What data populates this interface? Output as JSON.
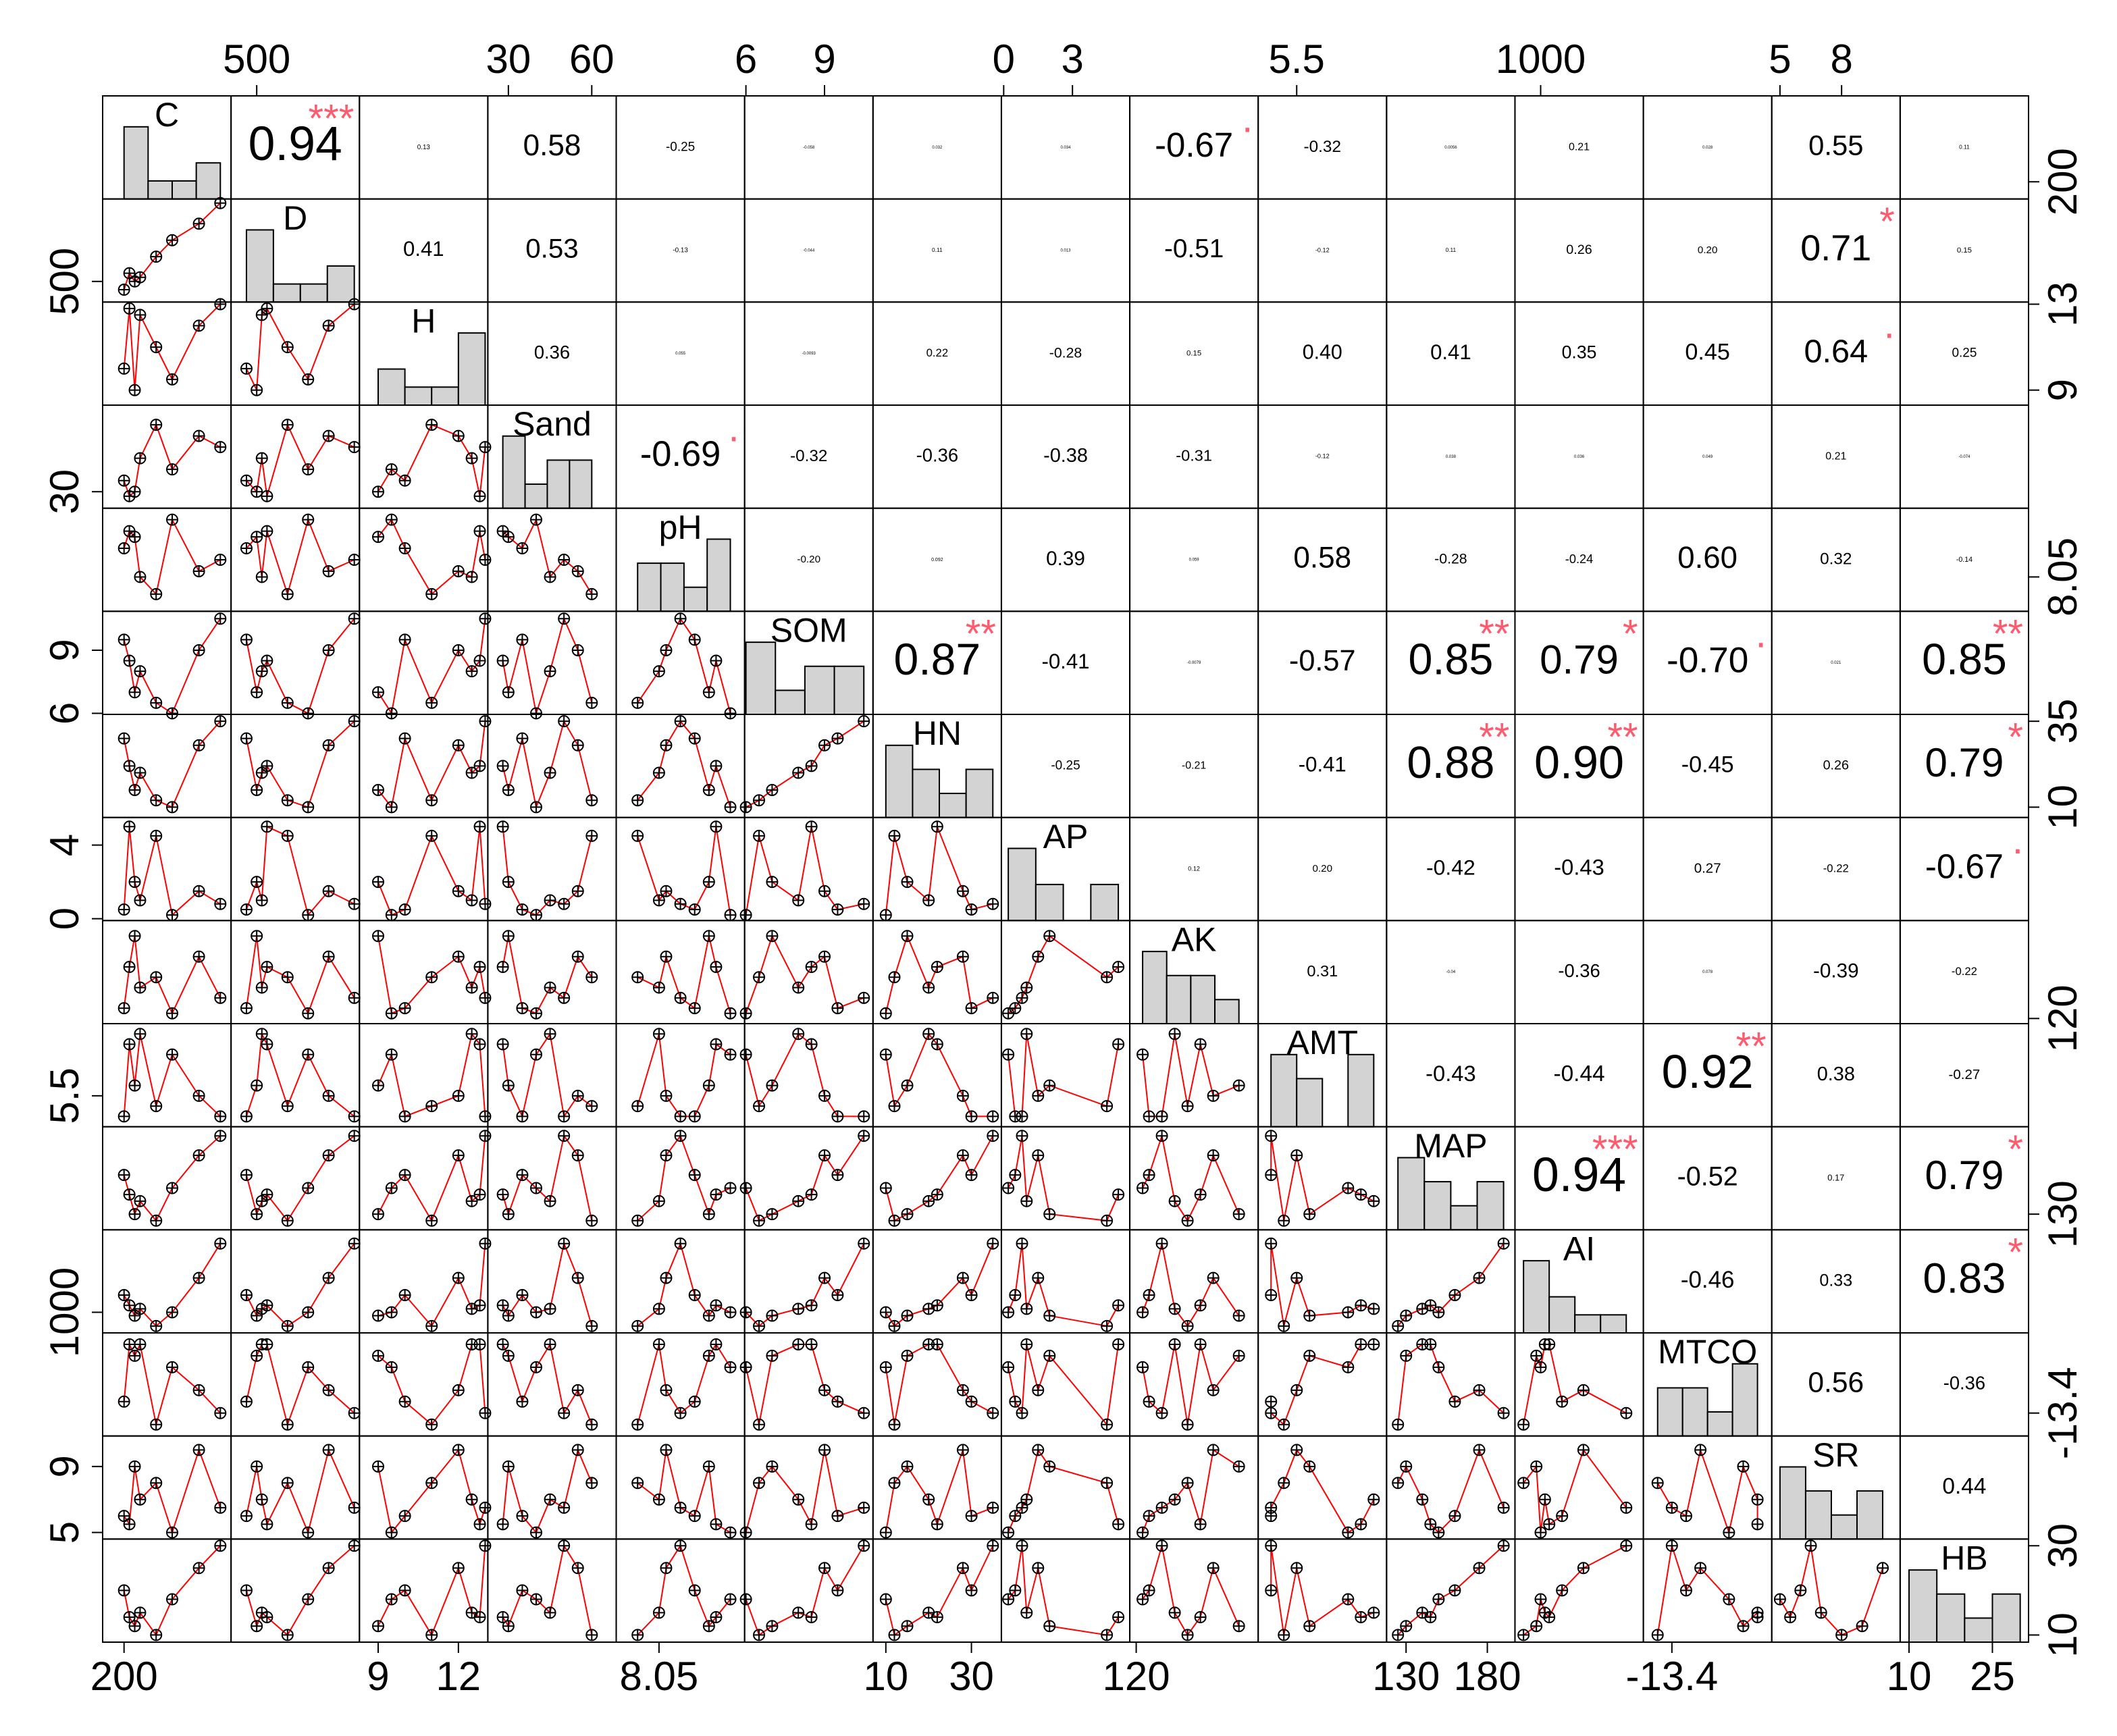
{
  "chart_data": {
    "type": "correlation-matrix",
    "smooth_color": "#ff0000",
    "star_color": "#ff5a6e",
    "hist_color": "#d3d3d3",
    "variables": [
      {
        "name": "C",
        "values": [
          200,
          210,
          215,
          230,
          245,
          270,
          290,
          205
        ],
        "lim": [
          180,
          300
        ],
        "xticks": [
          200
        ],
        "yticks": [
          200
        ]
      },
      {
        "name": "D",
        "values": [
          480,
          500,
          510,
          560,
          600,
          640,
          690,
          520
        ],
        "lim": [
          450,
          700
        ],
        "xticks": [
          500
        ],
        "yticks": [
          500
        ]
      },
      {
        "name": "H",
        "values": [
          10,
          9,
          12.5,
          11,
          9.5,
          12,
          13,
          12.8
        ],
        "lim": [
          8.3,
          13.1
        ],
        "xticks": [
          9,
          12
        ],
        "yticks": [
          9,
          13
        ]
      },
      {
        "name": "Sand",
        "values": [
          35,
          30,
          45,
          60,
          40,
          55,
          50,
          28
        ],
        "lim": [
          22.6,
          68.8
        ],
        "xticks": [
          30,
          60
        ],
        "yticks": [
          30
        ]
      },
      {
        "name": "pH",
        "values": [
          8.1,
          8.12,
          8.05,
          8.02,
          8.15,
          8.06,
          8.08,
          8.13
        ],
        "lim": [
          7.99,
          8.17
        ],
        "xticks": [
          8.05
        ],
        "yticks": [
          8.05
        ]
      },
      {
        "name": "SOM",
        "values": [
          9.5,
          7,
          8,
          6.5,
          6,
          9,
          10.5,
          8.5
        ],
        "lim": [
          5.95,
          10.85
        ],
        "xticks": [
          6,
          9
        ],
        "yticks": [
          6,
          9
        ]
      },
      {
        "name": "HN",
        "values": [
          30,
          15,
          20,
          12,
          10,
          28,
          35,
          22
        ],
        "lim": [
          7,
          37
        ],
        "xticks": [
          10,
          30
        ],
        "yticks": [
          10,
          35
        ]
      },
      {
        "name": "AP",
        "values": [
          0.5,
          2,
          1,
          4.5,
          0.2,
          1.5,
          0.8,
          5
        ],
        "lim": [
          -0.1,
          5.5
        ],
        "xticks": [
          0,
          3
        ],
        "yticks": [
          0,
          4
        ]
      },
      {
        "name": "AK",
        "values": [
          130,
          200,
          150,
          160,
          125,
          180,
          140,
          170
        ],
        "lim": [
          115,
          215
        ],
        "xticks": [
          120
        ],
        "yticks": [
          120
        ]
      },
      {
        "name": "AMT",
        "values": [
          5.3,
          5.6,
          6.1,
          5.4,
          5.9,
          5.5,
          5.3,
          6.0
        ],
        "lim": [
          5.2,
          6.2
        ],
        "xticks": [
          5.5
        ],
        "yticks": [
          5.5
        ]
      },
      {
        "name": "MAP",
        "values": [
          160,
          130,
          140,
          125,
          150,
          175,
          190,
          145
        ],
        "lim": [
          118,
          197
        ],
        "xticks": [
          130,
          180
        ],
        "yticks": [
          130
        ]
      },
      {
        "name": "AI",
        "values": [
          1050,
          990,
          1010,
          960,
          1000,
          1100,
          1200,
          1020
        ],
        "lim": [
          940,
          1240
        ],
        "xticks": [
          1000
        ],
        "yticks": [
          1000
        ]
      },
      {
        "name": "MTCO",
        "values": [
          -13.3,
          -12.9,
          -12.8,
          -13.5,
          -13.0,
          -13.2,
          -13.4,
          -12.8
        ],
        "lim": [
          -13.6,
          -12.7
        ],
        "xticks": [
          -13.4
        ],
        "yticks": [
          -13.4
        ]
      },
      {
        "name": "SR",
        "values": [
          6,
          9,
          7,
          8,
          5,
          10,
          6.5,
          5.5
        ],
        "lim": [
          4.6,
          10.85
        ],
        "xticks": [
          5,
          8
        ],
        "yticks": [
          5,
          9
        ]
      },
      {
        "name": "HB",
        "values": [
          20,
          12,
          15,
          10,
          18,
          25,
          30,
          14
        ],
        "lim": [
          8.4,
          31.5
        ],
        "xticks": [
          10,
          25
        ],
        "yticks": [
          10,
          30
        ]
      }
    ],
    "correlations": [
      [
        0.94,
        0.13,
        0.58,
        -0.25,
        -0.058,
        0.032,
        0.034,
        -0.67,
        -0.32,
        0.0056,
        0.21,
        0.028,
        0.55,
        0.11
      ],
      [
        0.41,
        0.53,
        -0.13,
        -0.044,
        0.11,
        0.013,
        -0.51,
        -0.12,
        0.11,
        0.26,
        0.2,
        0.71,
        0.15
      ],
      [
        0.36,
        0.055,
        -0.0093,
        0.22,
        -0.28,
        0.15,
        0.4,
        0.41,
        0.35,
        0.45,
        0.64,
        0.25
      ],
      [
        -0.69,
        -0.32,
        -0.36,
        -0.38,
        -0.31,
        -0.12,
        0.038,
        0.036,
        0.049,
        0.21,
        -0.074
      ],
      [
        -0.2,
        0.092,
        0.39,
        0.059,
        0.58,
        -0.28,
        -0.24,
        0.6,
        0.32,
        -0.14
      ],
      [
        0.87,
        -0.41,
        -0.0079,
        -0.57,
        0.85,
        0.79,
        -0.7,
        0.021,
        0.85
      ],
      [
        -0.25,
        -0.21,
        -0.41,
        0.88,
        0.9,
        -0.45,
        0.26,
        0.79
      ],
      [
        0.12,
        0.2,
        -0.42,
        -0.43,
        0.27,
        -0.22,
        -0.67
      ],
      [
        0.31,
        -0.04,
        -0.36,
        0.078,
        -0.39,
        -0.22
      ],
      [
        -0.43,
        -0.44,
        0.92,
        0.38,
        -0.27
      ],
      [
        0.94,
        -0.52,
        0.17,
        0.79
      ],
      [
        -0.46,
        0.33,
        0.83
      ],
      [
        0.56,
        -0.36
      ],
      [
        0.44
      ]
    ],
    "correlation_labels": [
      [
        "0.94",
        "0.13",
        "0.58",
        "-0.25",
        "-0.058",
        "0.032",
        "0.034",
        "-0.67",
        "-0.32",
        "0.0056",
        "0.21",
        "0.028",
        "0.55",
        "0.11"
      ],
      [
        "0.41",
        "0.53",
        "-0.13",
        "-0.044",
        "0.11",
        "0.013",
        "-0.51",
        "-0.12",
        "0.11",
        "0.26",
        "0.20",
        "0.71",
        "0.15"
      ],
      [
        "0.36",
        "0.055",
        "-0.0093",
        "0.22",
        "-0.28",
        "0.15",
        "0.40",
        "0.41",
        "0.35",
        "0.45",
        "0.64",
        "0.25"
      ],
      [
        "-0.69",
        "-0.32",
        "-0.36",
        "-0.38",
        "-0.31",
        "-0.12",
        "0.038",
        "0.036",
        "0.049",
        "0.21",
        "-0.074"
      ],
      [
        "-0.20",
        "0.092",
        "0.39",
        "0.059",
        "0.58",
        "-0.28",
        "-0.24",
        "0.60",
        "0.32",
        "-0.14"
      ],
      [
        "0.87",
        "-0.41",
        "-0.0079",
        "-0.57",
        "0.85",
        "0.79",
        "-0.70",
        "0.021",
        "0.85"
      ],
      [
        "-0.25",
        "-0.21",
        "-0.41",
        "0.88",
        "0.90",
        "-0.45",
        "0.26",
        "0.79"
      ],
      [
        "0.12",
        "0.20",
        "-0.42",
        "-0.43",
        "0.27",
        "-0.22",
        "-0.67"
      ],
      [
        "0.31",
        "-0.04",
        "-0.36",
        "0.078",
        "-0.39",
        "-0.22"
      ],
      [
        "-0.43",
        "-0.44",
        "0.92",
        "0.38",
        "-0.27"
      ],
      [
        "0.94",
        "-0.52",
        "0.17",
        "0.79"
      ],
      [
        "-0.46",
        "0.33",
        "0.83"
      ],
      [
        "0.56",
        "-0.36"
      ],
      [
        "0.44"
      ]
    ],
    "significance": [
      [
        "***",
        null,
        null,
        null,
        null,
        null,
        null,
        ".",
        null,
        null,
        null,
        null,
        null,
        null
      ],
      [
        null,
        null,
        null,
        null,
        null,
        null,
        null,
        null,
        null,
        null,
        null,
        "*",
        null
      ],
      [
        null,
        null,
        null,
        null,
        null,
        null,
        null,
        null,
        null,
        null,
        ".",
        null
      ],
      [
        ".",
        null,
        null,
        null,
        null,
        null,
        null,
        null,
        null,
        null,
        null
      ],
      [
        null,
        null,
        null,
        null,
        null,
        null,
        null,
        null,
        null,
        null
      ],
      [
        "**",
        null,
        null,
        null,
        "**",
        "*",
        ".",
        null,
        "**"
      ],
      [
        null,
        null,
        null,
        "**",
        "**",
        null,
        null,
        "*"
      ],
      [
        null,
        null,
        null,
        null,
        null,
        null,
        "."
      ],
      [
        null,
        null,
        null,
        null,
        null,
        null
      ],
      [
        null,
        null,
        "**",
        null,
        null
      ],
      [
        "***",
        null,
        null,
        "*"
      ],
      [
        null,
        null,
        "*"
      ],
      [
        null,
        null
      ],
      [
        null
      ]
    ]
  }
}
